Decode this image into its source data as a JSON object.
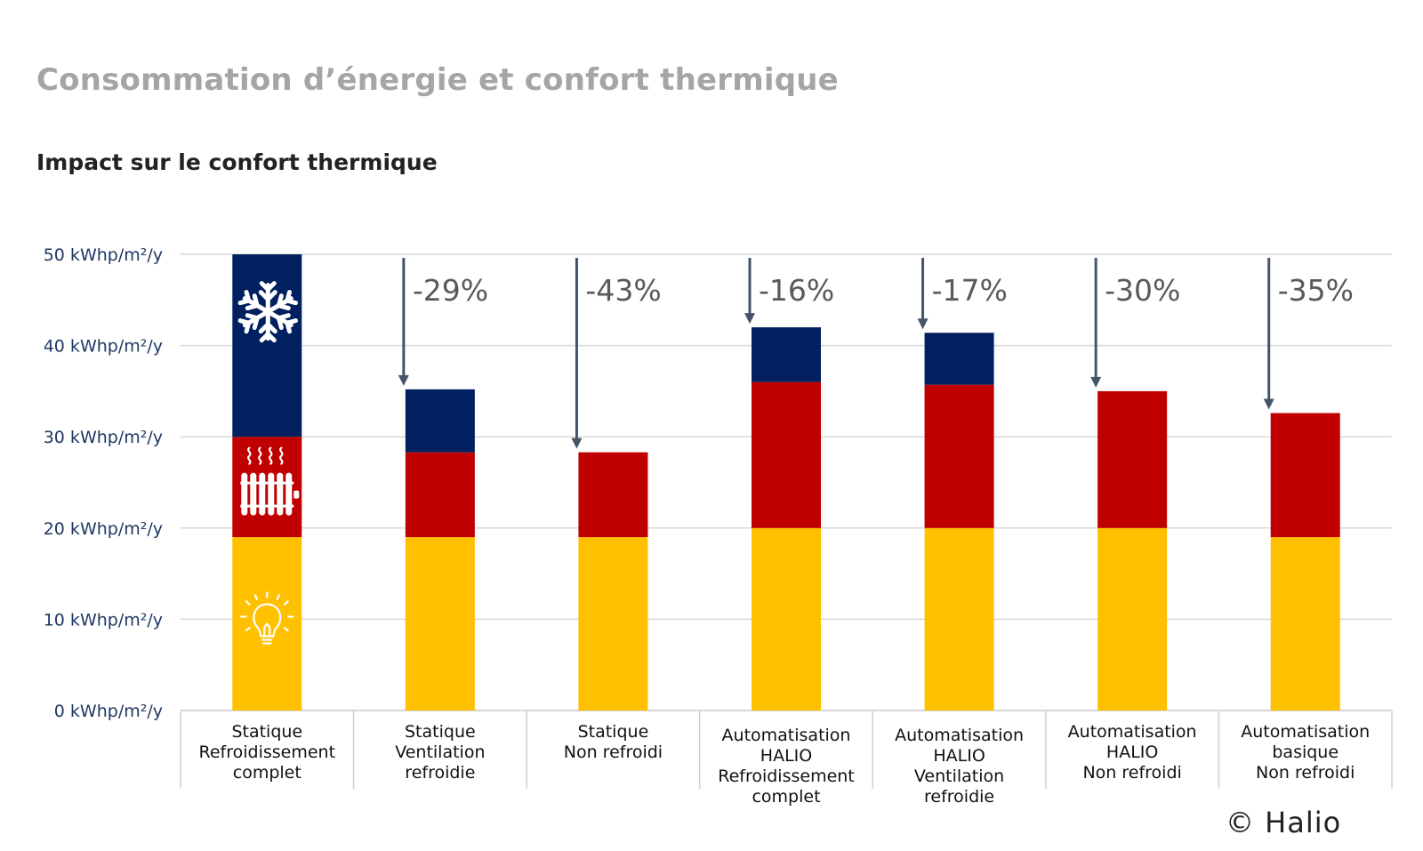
{
  "header": {
    "title": "Consommation d’énergie et confort thermique",
    "subtitle": "Impact sur le confort thermique"
  },
  "footer": {
    "copyright": "© Halio"
  },
  "colors": {
    "lighting": "#ffc000",
    "heating": "#c00000",
    "cooling": "#002060",
    "arrow": "#44546a",
    "grid": "#d9d9d9",
    "tick_label": "#1f3864"
  },
  "chart_data": {
    "type": "bar",
    "stacked": true,
    "categories": [
      [
        "Statique",
        "Refroidissement",
        "complet"
      ],
      [
        "Statique",
        "Ventilation",
        "refroidie"
      ],
      [
        "Statique",
        "Non refroidi"
      ],
      [
        "Automatisation",
        "HALIO",
        "Refroidissement",
        "complet"
      ],
      [
        "Automatisation",
        "HALIO",
        "Ventilation",
        "refroidie"
      ],
      [
        "Automatisation",
        "HALIO",
        "Non refroidi"
      ],
      [
        "Automatisation",
        "basique",
        "Non refroidi"
      ]
    ],
    "series": [
      {
        "key": "lighting",
        "icon": "lightbulb-icon",
        "values": [
          19,
          19,
          19,
          20,
          20,
          20,
          19
        ]
      },
      {
        "key": "heating",
        "icon": "radiator-icon",
        "values": [
          11,
          9.3,
          9.3,
          16,
          15.7,
          15,
          13.6
        ]
      },
      {
        "key": "cooling",
        "icon": "snowflake-icon",
        "values": [
          20,
          6.9,
          0,
          6,
          5.7,
          0,
          0
        ]
      }
    ],
    "reduction_labels": [
      "",
      "-29%",
      "-43%",
      "-16%",
      "-17%",
      "-30%",
      "-35%"
    ],
    "yticks": [
      "0 kWhp/m²/y",
      "10 kWhp/m²/y",
      "20 kWhp/m²/y",
      "30 kWhp/m²/y",
      "40 kWhp/m²/y",
      "50 kWhp/m²/y"
    ],
    "ylim": [
      0,
      50
    ],
    "grid": true,
    "legend": "icons on first bar"
  }
}
